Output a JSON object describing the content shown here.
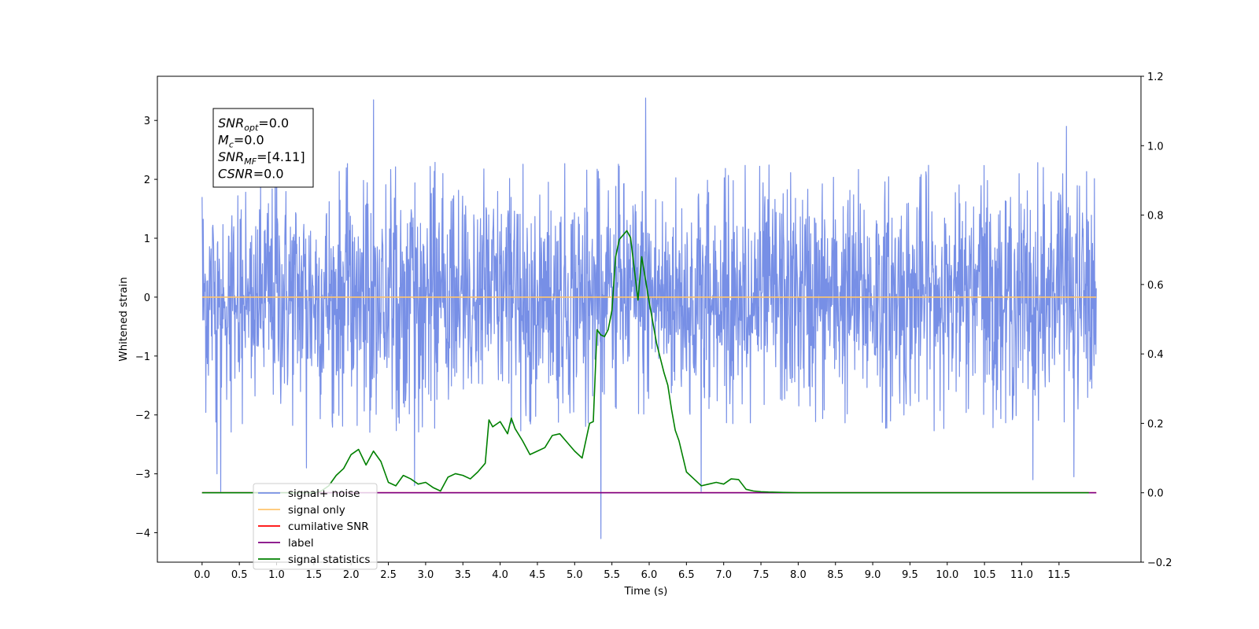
{
  "chart_data": {
    "type": "line",
    "xlabel": "Time (s)",
    "ylabel": "Whitened strain",
    "xlim": [
      -0.6,
      12.6
    ],
    "ylim": [
      -4.5,
      3.75
    ],
    "y2lim": [
      -0.2,
      1.2
    ],
    "x_ticks": [
      0.0,
      0.5,
      1.0,
      1.5,
      2.0,
      2.5,
      3.0,
      3.5,
      4.0,
      4.5,
      5.0,
      5.5,
      6.0,
      6.5,
      7.0,
      7.5,
      8.0,
      8.5,
      9.0,
      9.5,
      10.0,
      10.5,
      11.0,
      11.5
    ],
    "x_tick_labels": [
      "0.0",
      "0.5",
      "1.0",
      "1.5",
      "2.0",
      "2.5",
      "3.0",
      "3.5",
      "4.0",
      "4.5",
      "5.0",
      "5.5",
      "6.0",
      "6.5",
      "7.0",
      "7.5",
      "8.0",
      "8.5",
      "9.0",
      "9.5",
      "10.0",
      "10.5",
      "11.0",
      "11.5"
    ],
    "y_ticks": [
      3,
      2,
      1,
      0,
      -1,
      -2,
      -3,
      -4
    ],
    "y_tick_labels": [
      "3",
      "2",
      "1",
      "0",
      "−1",
      "−2",
      "−3",
      "−4"
    ],
    "y2_ticks": [
      1.2,
      1.0,
      0.8,
      0.6,
      0.4,
      0.2,
      0.0,
      -0.2
    ],
    "y2_tick_labels": [
      "1.2",
      "1.0",
      "0.8",
      "0.6",
      "0.4",
      "0.2",
      "0.0",
      "−0.2"
    ],
    "grid": false,
    "legend_position": "lower-left",
    "series": [
      {
        "name": "signal+ noise",
        "color": "#778FE6",
        "axis": "left",
        "x_range": [
          0.0,
          12.0
        ],
        "description": "dense random noise, mostly within ±2",
        "spikes": [
          [
            0.0,
            1.7
          ],
          [
            0.2,
            -3.0
          ],
          [
            0.25,
            -3.3
          ],
          [
            1.0,
            2.5
          ],
          [
            1.4,
            -2.9
          ],
          [
            2.3,
            3.35
          ],
          [
            2.85,
            -3.2
          ],
          [
            5.35,
            -4.1
          ],
          [
            5.95,
            3.38
          ],
          [
            6.7,
            -3.3
          ],
          [
            11.15,
            -3.1
          ],
          [
            11.6,
            2.9
          ],
          [
            11.7,
            -3.05
          ]
        ]
      },
      {
        "name": "signal only",
        "color": "#FFC56E",
        "axis": "left",
        "x": [
          0.0,
          12.0
        ],
        "y": [
          0.0,
          0.0
        ]
      },
      {
        "name": "cumilative SNR",
        "color": "#FF0000",
        "axis": "right",
        "x": [
          0.0,
          12.0
        ],
        "y": [
          0.0,
          0.0
        ]
      },
      {
        "name": "label",
        "color": "#800080",
        "axis": "right",
        "x": [
          0.0,
          12.0
        ],
        "y": [
          0.0,
          0.0
        ]
      },
      {
        "name": "signal statistics",
        "color": "#008000",
        "axis": "right",
        "x": [
          0.0,
          1.5,
          1.6,
          1.7,
          1.8,
          1.9,
          2.0,
          2.1,
          2.2,
          2.3,
          2.4,
          2.5,
          2.6,
          2.7,
          2.8,
          2.9,
          3.0,
          3.1,
          3.2,
          3.3,
          3.4,
          3.5,
          3.6,
          3.7,
          3.8,
          3.85,
          3.9,
          4.0,
          4.1,
          4.15,
          4.2,
          4.3,
          4.4,
          4.5,
          4.6,
          4.7,
          4.8,
          4.9,
          5.0,
          5.1,
          5.2,
          5.25,
          5.3,
          5.35,
          5.4,
          5.45,
          5.5,
          5.55,
          5.6,
          5.7,
          5.75,
          5.85,
          5.9,
          6.0,
          6.1,
          6.2,
          6.25,
          6.3,
          6.35,
          6.4,
          6.5,
          6.6,
          6.7,
          6.8,
          6.9,
          7.0,
          7.1,
          7.2,
          7.3,
          7.4,
          7.5,
          7.6,
          7.8,
          8.0,
          9.0,
          11.9
        ],
        "y": [
          0.0,
          0.0,
          0.005,
          0.02,
          0.05,
          0.07,
          0.11,
          0.125,
          0.08,
          0.12,
          0.09,
          0.03,
          0.02,
          0.05,
          0.04,
          0.025,
          0.03,
          0.015,
          0.005,
          0.045,
          0.055,
          0.05,
          0.04,
          0.06,
          0.085,
          0.21,
          0.19,
          0.205,
          0.17,
          0.215,
          0.185,
          0.15,
          0.11,
          0.12,
          0.13,
          0.165,
          0.17,
          0.145,
          0.12,
          0.1,
          0.2,
          0.205,
          0.47,
          0.455,
          0.45,
          0.47,
          0.525,
          0.68,
          0.73,
          0.755,
          0.735,
          0.555,
          0.68,
          0.55,
          0.43,
          0.345,
          0.31,
          0.24,
          0.18,
          0.15,
          0.06,
          0.04,
          0.02,
          0.025,
          0.03,
          0.025,
          0.04,
          0.038,
          0.01,
          0.005,
          0.003,
          0.002,
          0.001,
          0.0,
          0.0,
          0.0
        ]
      }
    ],
    "annotation": [
      {
        "base": "SNR",
        "sub": "opt",
        "rest": "=0.0"
      },
      {
        "base": "M",
        "sub": "c",
        "rest": "=0.0"
      },
      {
        "base": "SNR",
        "sub": "MF",
        "rest": "=[4.11]"
      },
      {
        "base": "CSNR",
        "sub": "",
        "rest": "=0.0"
      }
    ]
  }
}
